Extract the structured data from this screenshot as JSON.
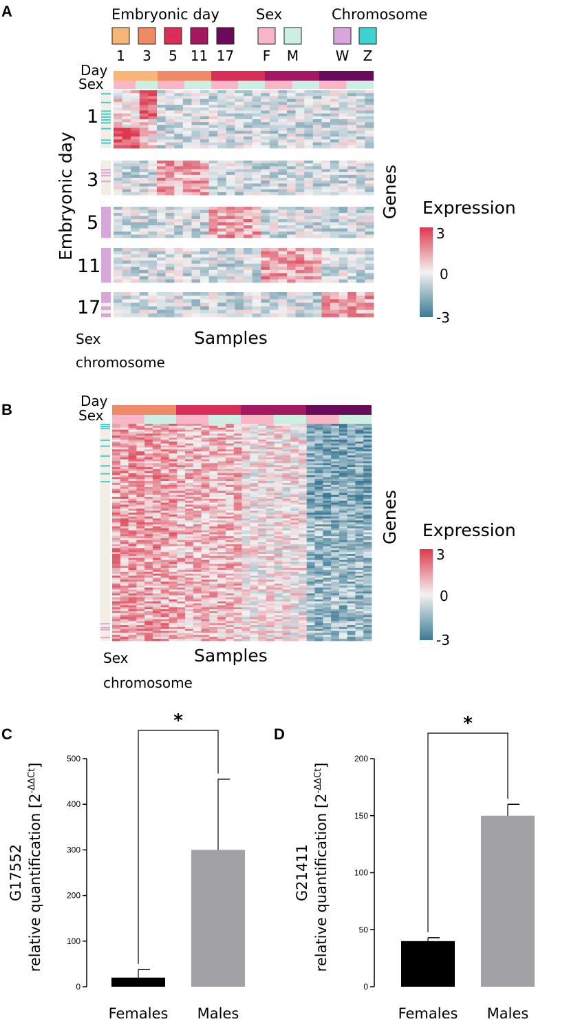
{
  "panels": {
    "a": "A",
    "b": "B",
    "c": "C",
    "d": "D"
  },
  "legend": {
    "day_title": "Embryonic day",
    "sex_title": "Sex",
    "chrom_title": "Chromosome",
    "day_items": [
      {
        "label": "1",
        "color": "#f9b478"
      },
      {
        "label": "3",
        "color": "#ee8a66"
      },
      {
        "label": "5",
        "color": "#d92e58"
      },
      {
        "label": "11",
        "color": "#a31860"
      },
      {
        "label": "17",
        "color": "#6a0a5a"
      }
    ],
    "sex_items": [
      {
        "label": "F",
        "color": "#f9b6c6"
      },
      {
        "label": "M",
        "color": "#cdeee2"
      }
    ],
    "chrom_items": [
      {
        "label": "W",
        "color": "#d9a6dc"
      },
      {
        "label": "Z",
        "color": "#3fd2d2"
      }
    ]
  },
  "heatmap_a": {
    "row_day": "Day",
    "row_sex": "Sex",
    "y_title": "Embryonic day",
    "right_title": "Genes",
    "x_title": "Samples",
    "left_note_1": "Sex",
    "left_note_2": "chromosome",
    "block_labels": [
      "1",
      "3",
      "5",
      "11",
      "17"
    ]
  },
  "heatmap_b": {
    "row_day": "Day",
    "row_sex": "Sex",
    "right_title": "Genes",
    "x_title": "Samples",
    "left_note_1": "Sex",
    "left_note_2": "chromosome"
  },
  "colorbar": {
    "title": "Expression",
    "ticks": [
      "3",
      "0",
      "-3"
    ],
    "high_color": "#dd3a4e",
    "mid_color": "#f2f2f2",
    "low_color": "#3b7a94"
  },
  "chart_data": [
    {
      "type": "bar",
      "panel": "C",
      "categories": [
        "Females",
        "Males"
      ],
      "values": [
        20,
        300
      ],
      "errors": [
        18,
        155
      ],
      "bar_colors": [
        "#000000",
        "#a1a1a6"
      ],
      "ylabel_gene": "G17552",
      "ylabel_main": "relative quantification [2",
      "ylabel_sup": "-ΔΔCt",
      "ylabel_end": "]",
      "ylim": [
        0,
        500
      ],
      "yticks": [
        0,
        100,
        200,
        300,
        400,
        500
      ],
      "significance": "*"
    },
    {
      "type": "bar",
      "panel": "D",
      "categories": [
        "Females",
        "Males"
      ],
      "values": [
        40,
        150
      ],
      "errors": [
        3,
        10
      ],
      "bar_colors": [
        "#000000",
        "#a1a1a6"
      ],
      "ylabel_gene": "G21411",
      "ylabel_main": "relative quantification [2",
      "ylabel_sup": "-ΔΔCt",
      "ylabel_end": "]",
      "ylim": [
        0,
        200
      ],
      "yticks": [
        0,
        50,
        100,
        150,
        200
      ],
      "significance": "*"
    }
  ]
}
